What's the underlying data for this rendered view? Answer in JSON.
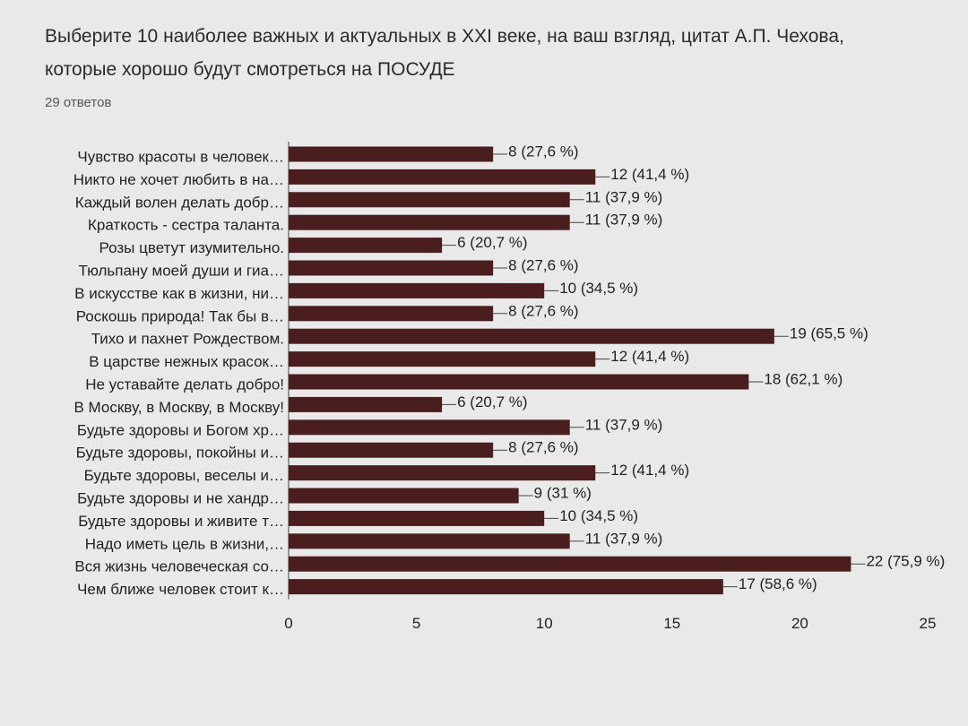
{
  "chart_data": {
    "type": "bar",
    "title": "Выберите 10 наиболее важных и актуальных в XXI веке, на ваш взгляд, цитат А.П. Чехова, которые хорошо будут смотреться на ПОСУДЕ",
    "subtitle": "29 ответов",
    "categories": [
      "Чувство красоты в человек…",
      "Никто не хочет любить в на…",
      "Каждый волен делать добр…",
      "Краткость - сестра таланта.",
      "Розы цветут изумительно.",
      "Тюльпану моей души и гиа…",
      "В искусстве как в жизни, ни…",
      "Роскошь природа! Так бы в…",
      "Тихо и пахнет Рождеством.",
      "В царстве нежных красок…",
      "Не уставайте делать добро!",
      "В Москву, в Москву, в Москву!",
      "Будьте здоровы и Богом хр…",
      "Будьте здоровы, покойны и…",
      "Будьте здоровы, веселы и…",
      "Будьте здоровы и не хандр…",
      "Будьте здоровы и живите т…",
      "Надо иметь цель в жизни,…",
      "Вся жизнь человеческая со…",
      "Чем ближе человек стоит к…"
    ],
    "values": [
      8,
      12,
      11,
      11,
      6,
      8,
      10,
      8,
      19,
      12,
      18,
      6,
      11,
      8,
      12,
      9,
      10,
      11,
      22,
      17
    ],
    "value_labels": [
      "8 (27,6 %)",
      "12 (41,4 %)",
      "11 (37,9 %)",
      "11 (37,9 %)",
      "6 (20,7 %)",
      "8 (27,6 %)",
      "10 (34,5 %)",
      "8 (27,6 %)",
      "19 (65,5 %)",
      "12 (41,4 %)",
      "18 (62,1 %)",
      "6 (20,7 %)",
      "11 (37,9 %)",
      "8 (27,6 %)",
      "12 (41,4 %)",
      "9 (31 %)",
      "10 (34,5 %)",
      "11 (37,9 %)",
      "22 (75,9 %)",
      "17 (58,6 %)"
    ],
    "color": "#4a1e1e",
    "xlim": [
      0,
      25
    ],
    "xticks": [
      0,
      5,
      10,
      15,
      20,
      25
    ]
  }
}
